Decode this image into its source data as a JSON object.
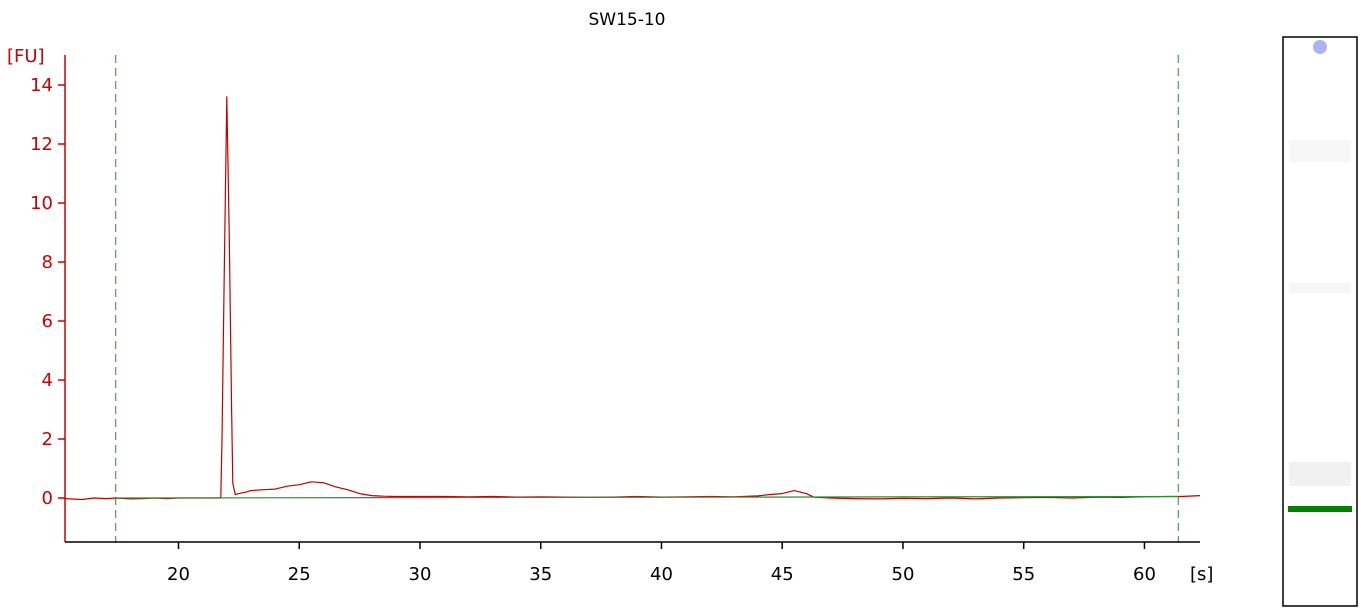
{
  "chart_data": {
    "type": "line",
    "title": "SW15-10",
    "ylabel": "[FU]",
    "xlabel": "[s]",
    "xlim": [
      15.3,
      62.3
    ],
    "ylim": [
      -1.5,
      15
    ],
    "yticks": [
      0,
      2,
      4,
      6,
      8,
      10,
      12,
      14
    ],
    "xticks": [
      20,
      25,
      30,
      35,
      40,
      45,
      50,
      55,
      60
    ],
    "grid": false,
    "markers": [
      17.4,
      61.4
    ],
    "series": [
      {
        "color": "#c00000",
        "x": [
          15.3,
          16.0,
          16.5,
          17.0,
          17.4,
          18.0,
          18.5,
          19.0,
          19.5,
          20.0,
          20.5,
          21.0,
          21.5,
          21.75,
          21.8,
          21.9,
          22.0,
          22.1,
          22.2,
          22.25,
          22.35,
          22.5,
          22.8,
          23.0,
          23.5,
          24.0,
          24.5,
          25.0,
          25.5,
          26.0,
          26.5,
          27.0,
          27.5,
          28.0,
          28.5,
          29.0,
          30.0,
          31.0,
          32.0,
          33.0,
          34.0,
          35.0,
          36.0,
          37.0,
          38.0,
          39.0,
          40.0,
          41.0,
          42.0,
          43.0,
          44.0,
          44.5,
          45.0,
          45.5,
          46.0,
          46.3,
          47.0,
          48.0,
          49.0,
          50.0,
          51.0,
          52.0,
          53.0,
          54.0,
          55.0,
          56.0,
          57.0,
          58.0,
          59.0,
          60.0,
          61.0,
          61.5,
          62.3
        ],
        "y": [
          -0.02,
          -0.05,
          0.0,
          -0.02,
          0.0,
          -0.03,
          -0.02,
          0.0,
          -0.02,
          0.0,
          0.0,
          0.0,
          0.0,
          0.0,
          2.0,
          8.0,
          13.6,
          9.0,
          3.0,
          0.5,
          0.12,
          0.15,
          0.2,
          0.25,
          0.28,
          0.3,
          0.4,
          0.45,
          0.55,
          0.52,
          0.38,
          0.28,
          0.15,
          0.08,
          0.06,
          0.05,
          0.05,
          0.05,
          0.04,
          0.05,
          0.03,
          0.04,
          0.03,
          0.02,
          0.03,
          0.05,
          0.03,
          0.04,
          0.05,
          0.04,
          0.07,
          0.12,
          0.15,
          0.25,
          0.15,
          0.03,
          0.0,
          -0.02,
          -0.03,
          -0.01,
          -0.02,
          0.0,
          -0.03,
          0.0,
          0.01,
          0.02,
          0.0,
          0.03,
          0.02,
          0.04,
          0.05,
          0.05,
          0.08
        ]
      },
      {
        "color": "#2e8b2e",
        "x": [
          17.4,
          61.4
        ],
        "y": [
          0.0,
          0.05
        ]
      }
    ]
  },
  "gel_lane": {
    "border_color": "#000000",
    "band_color": "#008000",
    "marker_color": "#aab4f0"
  },
  "colors": {
    "axis_y": "#cc0000",
    "axis_x": "#000000",
    "marker_line": "#2e8b2e"
  }
}
